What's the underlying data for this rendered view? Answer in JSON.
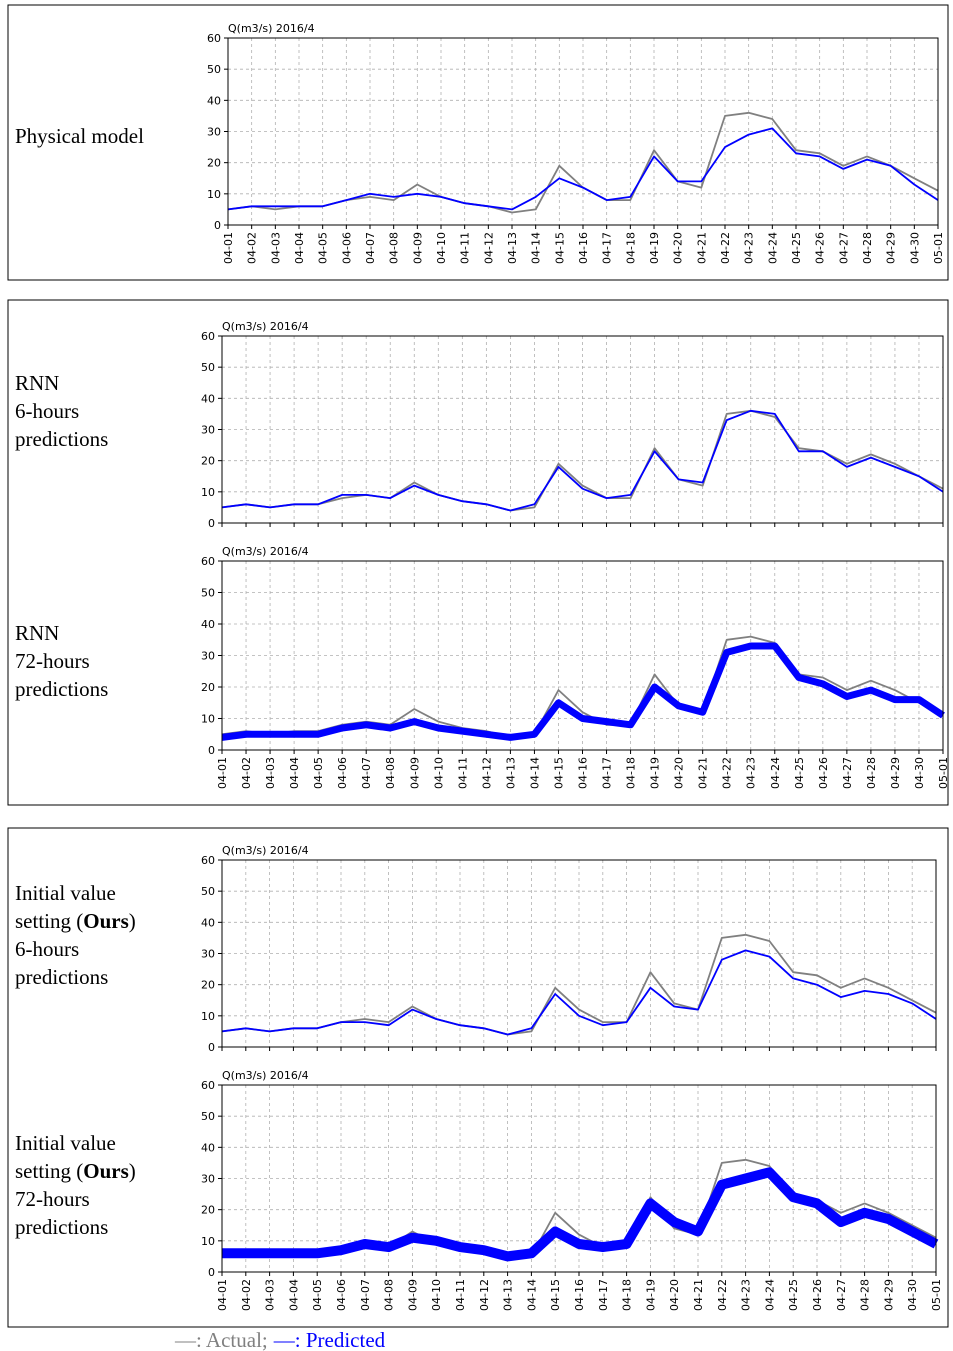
{
  "chart_data": [
    {
      "type": "line",
      "row_label": [
        [
          {
            "t": "Physical model"
          }
        ]
      ],
      "title": "Q(m3/s) 2016/4",
      "categories": [
        "04-01",
        "04-02",
        "04-03",
        "04-04",
        "04-05",
        "04-06",
        "04-07",
        "04-08",
        "04-09",
        "04-10",
        "04-11",
        "04-12",
        "04-13",
        "04-14",
        "04-15",
        "04-16",
        "04-17",
        "04-18",
        "04-19",
        "04-20",
        "04-21",
        "04-22",
        "04-23",
        "04-24",
        "04-25",
        "04-26",
        "04-27",
        "04-28",
        "04-29",
        "04-30",
        "05-01"
      ],
      "series": [
        {
          "name": "Actual",
          "color": "#808080",
          "values": [
            5,
            6,
            5,
            6,
            6,
            8,
            9,
            8,
            13,
            9,
            7,
            6,
            4,
            5,
            19,
            12,
            8,
            8,
            24,
            14,
            12,
            35,
            36,
            34,
            24,
            23,
            19,
            22,
            19,
            15,
            11
          ]
        },
        {
          "name": "Predicted",
          "color": "#0000ff",
          "values": [
            5,
            6,
            6,
            6,
            6,
            8,
            10,
            9,
            10,
            9,
            7,
            6,
            5,
            9,
            15,
            12,
            8,
            9,
            22,
            14,
            14,
            25,
            29,
            31,
            23,
            22,
            18,
            21,
            19,
            13,
            8
          ]
        }
      ],
      "ylim": [
        0,
        60
      ],
      "yticks": [
        0,
        10,
        20,
        30,
        40,
        50,
        60
      ],
      "grid": true
    },
    {
      "type": "line",
      "row_label": [
        [
          {
            "t": "RNN"
          }
        ],
        [
          {
            "t": "6-hours"
          }
        ],
        [
          {
            "t": "predictions"
          }
        ]
      ],
      "title": "Q(m3/s) 2016/4",
      "categories": [
        null,
        null,
        null,
        null,
        null,
        null,
        null,
        null,
        null,
        null,
        null,
        null,
        null,
        null,
        null,
        null,
        null,
        null,
        null,
        null,
        null,
        null,
        null,
        null,
        null,
        null,
        null,
        null,
        null,
        null,
        null
      ],
      "series": [
        {
          "name": "Actual",
          "color": "#808080",
          "values": [
            5,
            6,
            5,
            6,
            6,
            8,
            9,
            8,
            13,
            9,
            7,
            6,
            4,
            5,
            19,
            12,
            8,
            8,
            24,
            14,
            12,
            35,
            36,
            34,
            24,
            23,
            19,
            22,
            19,
            15,
            11
          ]
        },
        {
          "name": "Predicted",
          "color": "#0000ff",
          "values": [
            5,
            6,
            5,
            6,
            6,
            9,
            9,
            8,
            12,
            9,
            7,
            6,
            4,
            6,
            18,
            11,
            8,
            9,
            23,
            14,
            13,
            33,
            36,
            35,
            23,
            23,
            18,
            21,
            18,
            15,
            10
          ]
        }
      ],
      "ylim": [
        0,
        60
      ],
      "yticks": [
        0,
        10,
        20,
        30,
        40,
        50,
        60
      ],
      "grid": true
    },
    {
      "type": "line",
      "row_label": [
        [
          {
            "t": "RNN"
          }
        ],
        [
          {
            "t": "72-hours"
          }
        ],
        [
          {
            "t": "predictions"
          }
        ]
      ],
      "title": "Q(m3/s) 2016/4",
      "categories": [
        "04-01",
        "04-02",
        "04-03",
        "04-04",
        "04-05",
        "04-06",
        "04-07",
        "04-08",
        "04-09",
        "04-10",
        "04-11",
        "04-12",
        "04-13",
        "04-14",
        "04-15",
        "04-16",
        "04-17",
        "04-18",
        "04-19",
        "04-20",
        "04-21",
        "04-22",
        "04-23",
        "04-24",
        "04-25",
        "04-26",
        "04-27",
        "04-28",
        "04-29",
        "04-30",
        "05-01"
      ],
      "series": [
        {
          "name": "Actual",
          "color": "#808080",
          "values": [
            5,
            6,
            5,
            6,
            6,
            8,
            9,
            8,
            13,
            9,
            7,
            6,
            4,
            5,
            19,
            12,
            8,
            8,
            24,
            14,
            12,
            35,
            36,
            34,
            24,
            23,
            19,
            22,
            19,
            15,
            11
          ]
        },
        {
          "name": "Predicted",
          "color": "#0000ff",
          "line_width": 7,
          "values": [
            4,
            5,
            5,
            5,
            5,
            7,
            8,
            7,
            9,
            7,
            6,
            5,
            4,
            5,
            15,
            10,
            9,
            8,
            20,
            14,
            12,
            31,
            33,
            33,
            23,
            21,
            17,
            19,
            16,
            16,
            11
          ]
        }
      ],
      "ylim": [
        0,
        60
      ],
      "yticks": [
        0,
        10,
        20,
        30,
        40,
        50,
        60
      ],
      "grid": true
    },
    {
      "type": "line",
      "row_label": [
        [
          {
            "t": "Initial value"
          }
        ],
        [
          {
            "t": "setting ("
          },
          {
            "t": "Ours",
            "b": true
          },
          {
            "t": ")"
          }
        ],
        [
          {
            "t": "6-hours"
          }
        ],
        [
          {
            "t": "predictions"
          }
        ]
      ],
      "title": "Q(m3/s) 2016/4",
      "categories": [
        null,
        null,
        null,
        null,
        null,
        null,
        null,
        null,
        null,
        null,
        null,
        null,
        null,
        null,
        null,
        null,
        null,
        null,
        null,
        null,
        null,
        null,
        null,
        null,
        null,
        null,
        null,
        null,
        null,
        null,
        null
      ],
      "series": [
        {
          "name": "Actual",
          "color": "#808080",
          "values": [
            5,
            6,
            5,
            6,
            6,
            8,
            9,
            8,
            13,
            9,
            7,
            6,
            4,
            5,
            19,
            12,
            8,
            8,
            24,
            14,
            12,
            35,
            36,
            34,
            24,
            23,
            19,
            22,
            19,
            15,
            11
          ]
        },
        {
          "name": "Predicted",
          "color": "#0000ff",
          "values": [
            5,
            6,
            5,
            6,
            6,
            8,
            8,
            7,
            12,
            9,
            7,
            6,
            4,
            6,
            17,
            10,
            7,
            8,
            19,
            13,
            12,
            28,
            31,
            29,
            22,
            20,
            16,
            18,
            17,
            14,
            9
          ]
        }
      ],
      "ylim": [
        0,
        60
      ],
      "yticks": [
        0,
        10,
        20,
        30,
        40,
        50,
        60
      ],
      "grid": true
    },
    {
      "type": "line",
      "row_label": [
        [
          {
            "t": "Initial value"
          }
        ],
        [
          {
            "t": "setting ("
          },
          {
            "t": "Ours",
            "b": true
          },
          {
            "t": ")"
          }
        ],
        [
          {
            "t": "72-hours"
          }
        ],
        [
          {
            "t": "predictions"
          }
        ]
      ],
      "title": "Q(m3/s) 2016/4",
      "categories": [
        "04-01",
        "04-02",
        "04-03",
        "04-04",
        "04-05",
        "04-06",
        "04-07",
        "04-08",
        "04-09",
        "04-10",
        "04-11",
        "04-12",
        "04-13",
        "04-14",
        "04-15",
        "04-16",
        "04-17",
        "04-18",
        "04-19",
        "04-20",
        "04-21",
        "04-22",
        "04-23",
        "04-24",
        "04-25",
        "04-26",
        "04-27",
        "04-28",
        "04-29",
        "04-30",
        "05-01"
      ],
      "series": [
        {
          "name": "Actual",
          "color": "#808080",
          "values": [
            5,
            6,
            5,
            6,
            6,
            8,
            9,
            8,
            13,
            9,
            7,
            6,
            4,
            5,
            19,
            12,
            8,
            8,
            24,
            14,
            12,
            35,
            36,
            34,
            24,
            23,
            19,
            22,
            19,
            15,
            11
          ]
        },
        {
          "name": "Predicted",
          "color": "#0000ff",
          "line_width": 10,
          "values": [
            6,
            6,
            6,
            6,
            6,
            7,
            9,
            8,
            11,
            10,
            8,
            7,
            5,
            6,
            13,
            9,
            8,
            9,
            22,
            16,
            13,
            28,
            30,
            32,
            24,
            22,
            16,
            19,
            17,
            13,
            9
          ]
        }
      ],
      "ylim": [
        0,
        60
      ],
      "yticks": [
        0,
        10,
        20,
        30,
        40,
        50,
        60
      ],
      "grid": true
    }
  ],
  "legend": [
    {
      "text": "—: Actual;",
      "color": "#808080"
    },
    {
      "text": "—: Predicted",
      "color": "#0000ff"
    }
  ]
}
